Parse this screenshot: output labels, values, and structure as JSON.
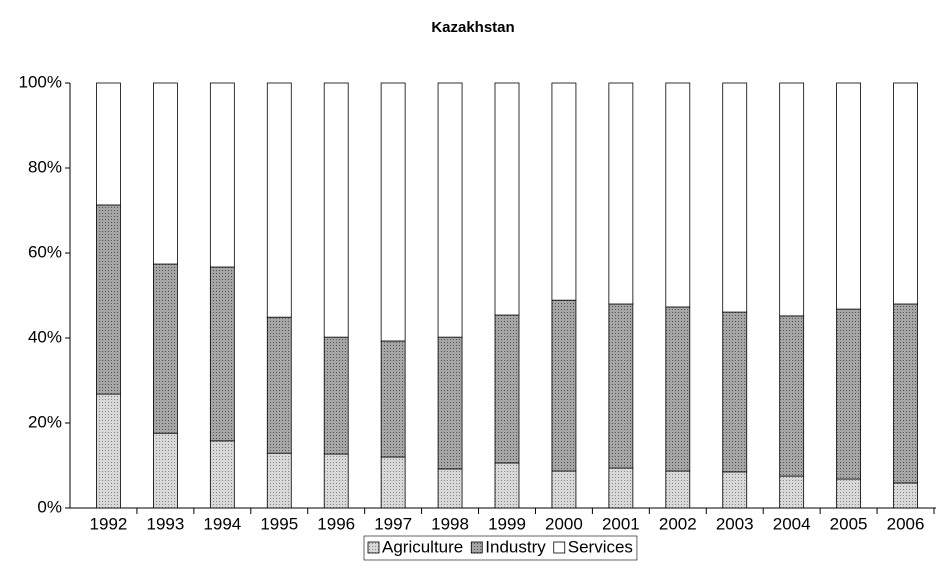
{
  "chart_data": {
    "type": "stacked-bar",
    "title": "Kazakhstan",
    "categories": [
      "1992",
      "1993",
      "1994",
      "1995",
      "1996",
      "1997",
      "1998",
      "1999",
      "2000",
      "2001",
      "2002",
      "2003",
      "2004",
      "2005",
      "2006"
    ],
    "series": [
      {
        "name": "Agriculture",
        "color": "#d8d8d8",
        "values": [
          26.8,
          17.6,
          15.8,
          12.9,
          12.7,
          12.0,
          9.2,
          10.6,
          8.7,
          9.4,
          8.7,
          8.5,
          7.5,
          6.8,
          5.9
        ]
      },
      {
        "name": "Industry",
        "color": "#a6a6a6",
        "values": [
          44.5,
          39.8,
          40.9,
          32.0,
          27.5,
          27.3,
          31.0,
          34.8,
          40.2,
          38.6,
          38.6,
          37.6,
          37.7,
          40.0,
          42.1
        ]
      },
      {
        "name": "Services",
        "color": "#ffffff",
        "values": [
          28.7,
          42.6,
          43.3,
          55.1,
          59.8,
          60.7,
          59.8,
          54.6,
          51.1,
          52.0,
          52.7,
          53.9,
          54.8,
          53.2,
          52.0
        ]
      }
    ],
    "ylim": [
      0,
      100
    ],
    "yticks": [
      {
        "value": 0,
        "label": "0%"
      },
      {
        "value": 20,
        "label": "20%"
      },
      {
        "value": 40,
        "label": "40%"
      },
      {
        "value": 60,
        "label": "60%"
      },
      {
        "value": 80,
        "label": "80%"
      },
      {
        "value": 100,
        "label": "100%"
      }
    ],
    "grid": false,
    "legend": "bottom"
  }
}
